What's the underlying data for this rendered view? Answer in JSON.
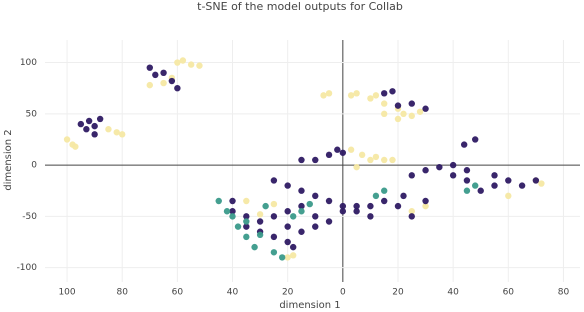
{
  "chart_data": {
    "type": "scatter",
    "title": "t-SNE of the model outputs for Collab",
    "x_label": "dimension 1",
    "y_label": "dimension 2",
    "xlim": [
      -108,
      86
    ],
    "ylim": [
      -114,
      122
    ],
    "xticks": [
      {
        "value": -100,
        "label": "100"
      },
      {
        "value": -80,
        "label": "80"
      },
      {
        "value": -60,
        "label": "60"
      },
      {
        "value": -40,
        "label": "40"
      },
      {
        "value": -20,
        "label": "20"
      },
      0,
      20,
      40,
      60,
      80
    ],
    "yticks": [
      -100,
      -50,
      0,
      50,
      100
    ],
    "grid": true,
    "series": [
      {
        "color": "#f6e8a3",
        "x": [
          -100,
          -98,
          -97,
          -85,
          -82,
          -80,
          -65,
          -62,
          -60,
          -58,
          -55,
          -52,
          -70,
          5,
          3,
          -5,
          -7,
          10,
          12,
          15,
          20,
          22,
          25,
          28,
          15,
          20,
          7,
          10,
          12,
          15,
          18,
          3,
          5,
          25,
          30,
          60,
          70,
          72,
          -35,
          -25,
          -20,
          -18,
          -30
        ],
        "y": [
          25,
          20,
          18,
          35,
          32,
          30,
          80,
          85,
          100,
          102,
          98,
          97,
          78,
          70,
          68,
          70,
          68,
          65,
          68,
          60,
          55,
          50,
          48,
          52,
          50,
          45,
          10,
          5,
          8,
          5,
          5,
          15,
          -2,
          -45,
          -40,
          -30,
          -15,
          -18,
          -35,
          -38,
          -90,
          -88,
          -48
        ]
      },
      {
        "color": "#2e1a63",
        "x": [
          -95,
          -92,
          -90,
          -88,
          -93,
          -90,
          -68,
          -65,
          -62,
          -60,
          -70,
          -2,
          0,
          -5,
          -10,
          -15,
          15,
          18,
          25,
          30,
          20,
          40,
          45,
          48,
          44,
          35,
          30,
          25,
          55,
          60,
          65,
          70,
          55,
          50,
          40,
          45,
          -20,
          -15,
          -25,
          -10,
          -5,
          0,
          5,
          10,
          15,
          20,
          25,
          -15,
          -20,
          -25,
          -30,
          -35,
          -40,
          -20,
          -25,
          -20,
          -18,
          -30,
          -35,
          -10,
          -5,
          0,
          5,
          -40,
          30,
          22,
          10,
          -15,
          -10
        ],
        "y": [
          40,
          43,
          38,
          45,
          35,
          30,
          88,
          90,
          82,
          75,
          95,
          15,
          12,
          10,
          5,
          5,
          70,
          72,
          60,
          55,
          58,
          0,
          -5,
          25,
          20,
          -2,
          -5,
          -10,
          -10,
          -15,
          -20,
          -15,
          -20,
          -25,
          -10,
          -15,
          -20,
          -25,
          -15,
          -30,
          -35,
          -40,
          -45,
          -40,
          -35,
          -40,
          -50,
          -40,
          -45,
          -50,
          -55,
          -50,
          -45,
          -60,
          -70,
          -75,
          -80,
          -65,
          -60,
          -50,
          -55,
          -45,
          -40,
          -35,
          -35,
          -30,
          -50,
          -65,
          -60
        ]
      },
      {
        "color": "#3a9a8a",
        "x": [
          -45,
          -42,
          -40,
          -35,
          -38,
          -30,
          -32,
          -25,
          -22,
          -35,
          -28,
          -18,
          -15,
          15,
          12,
          45,
          48,
          -12
        ],
        "y": [
          -35,
          -45,
          -50,
          -55,
          -60,
          -68,
          -80,
          -85,
          -90,
          -70,
          -40,
          -50,
          -45,
          -25,
          -30,
          -25,
          -20,
          -38
        ]
      }
    ]
  }
}
